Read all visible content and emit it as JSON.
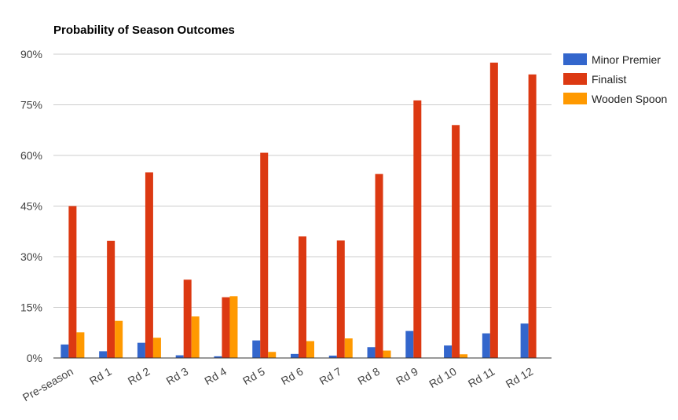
{
  "chart_data": {
    "type": "bar",
    "title": "Probability of Season Outcomes",
    "xlabel": "",
    "ylabel": "",
    "ylim": [
      0,
      90
    ],
    "yticks": [
      0,
      15,
      30,
      45,
      60,
      75,
      90
    ],
    "ytick_labels": [
      "0%",
      "15%",
      "30%",
      "45%",
      "60%",
      "75%",
      "90%"
    ],
    "grid": true,
    "legend_position": "right",
    "categories": [
      "Pre-season",
      "Rd 1",
      "Rd 2",
      "Rd 3",
      "Rd 4",
      "Rd 5",
      "Rd 6",
      "Rd 7",
      "Rd 8",
      "Rd 9",
      "Rd 10",
      "Rd 11",
      "Rd 12"
    ],
    "series": [
      {
        "name": "Minor Premier",
        "color": "#3366cc",
        "values": [
          4.0,
          2.0,
          4.5,
          0.8,
          0.5,
          5.2,
          1.2,
          0.7,
          3.2,
          8.0,
          3.7,
          7.3,
          10.2
        ]
      },
      {
        "name": "Finalist",
        "color": "#dc3912",
        "values": [
          45.0,
          34.7,
          55.0,
          23.2,
          18.0,
          60.8,
          36.0,
          34.8,
          54.5,
          76.3,
          69.0,
          87.5,
          84.0
        ]
      },
      {
        "name": "Wooden Spoon",
        "color": "#ff9900",
        "values": [
          7.6,
          11.0,
          6.0,
          12.3,
          18.3,
          1.8,
          5.0,
          5.8,
          2.2,
          0.0,
          1.1,
          0.0,
          0.0
        ]
      }
    ]
  }
}
